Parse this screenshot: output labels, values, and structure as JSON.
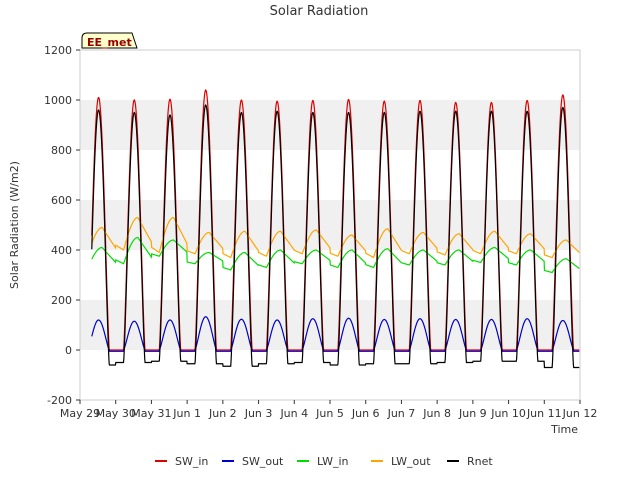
{
  "chart_data": {
    "type": "line",
    "title": "Solar Radiation",
    "xlabel": "Time",
    "ylabel": "Solar Radiation (W/m2)",
    "ylim": [
      -200,
      1200
    ],
    "yticks": [
      -200,
      0,
      200,
      400,
      600,
      800,
      1000,
      1200
    ],
    "xlim_days": [
      0,
      14
    ],
    "xtick_labels": [
      "May 29",
      "May 30",
      "May 31",
      "Jun 1",
      "Jun 2",
      "Jun 3",
      "Jun 4",
      "Jun 5",
      "Jun 6",
      "Jun 7",
      "Jun 8",
      "Jun 9",
      "Jun 10",
      "Jun 11",
      "Jun 12"
    ],
    "grid": "alternating horizontal bands",
    "legend_position": "bottom-center",
    "annotation": "EE_met",
    "data_start_day": 0.33,
    "data_end_day": 13.98,
    "series": [
      {
        "name": "SW_in",
        "color": "#dd0000",
        "daily_peak": [
          1010,
          1000,
          1003,
          1040,
          1000,
          995,
          998,
          1002,
          995,
          998,
          990,
          990,
          998,
          1020
        ],
        "night_value": 0
      },
      {
        "name": "SW_out",
        "color": "#0000cc",
        "daily_peak": [
          120,
          115,
          120,
          133,
          123,
          120,
          125,
          127,
          122,
          125,
          122,
          122,
          125,
          118
        ],
        "night_value": -5
      },
      {
        "name": "LW_in",
        "color": "#00dd00",
        "daily_night": [
          330,
          345,
          375,
          345,
          320,
          330,
          345,
          330,
          330,
          340,
          340,
          350,
          340,
          310
        ],
        "daily_peak": [
          410,
          450,
          440,
          390,
          390,
          400,
          400,
          400,
          405,
          400,
          400,
          410,
          400,
          365
        ]
      },
      {
        "name": "LW_out",
        "color": "#ffa500",
        "daily_night": [
          380,
          400,
          390,
          385,
          370,
          375,
          385,
          375,
          370,
          385,
          380,
          385,
          385,
          370
        ],
        "daily_peak": [
          490,
          530,
          530,
          470,
          475,
          475,
          480,
          460,
          485,
          470,
          465,
          475,
          465,
          440
        ]
      },
      {
        "name": "Rnet",
        "color": "#000000",
        "daily_peak": [
          960,
          950,
          940,
          980,
          950,
          955,
          950,
          950,
          950,
          955,
          955,
          955,
          955,
          970
        ],
        "daily_night": [
          -60,
          -50,
          -45,
          -55,
          -65,
          -55,
          -50,
          -60,
          -55,
          -55,
          -50,
          -45,
          -45,
          -70
        ]
      }
    ]
  }
}
